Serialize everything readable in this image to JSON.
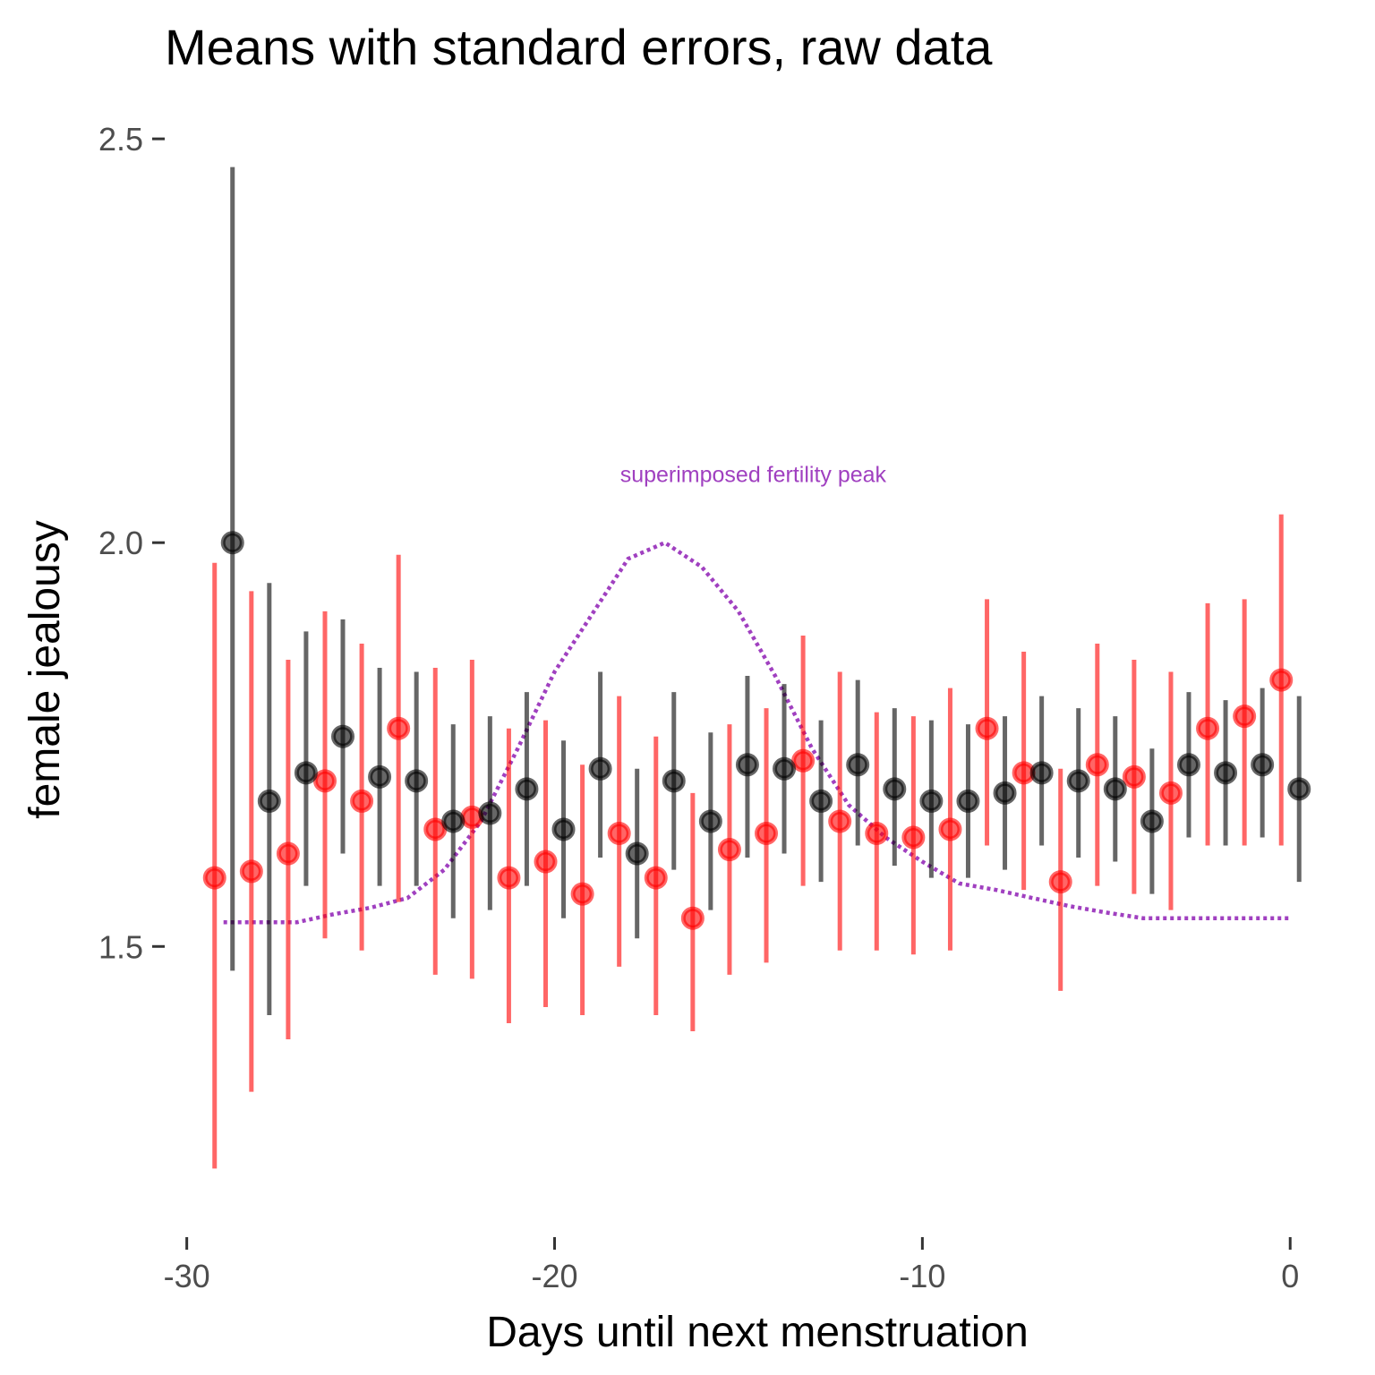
{
  "chart_data": {
    "type": "scatter",
    "title": "Means with standard errors, raw data",
    "xlabel": "Days until next menstruation",
    "ylabel": "female jealousy",
    "xlim": [
      -30.6,
      0.7
    ],
    "ylim": [
      1.17,
      2.55
    ],
    "xticks": [
      -30,
      -20,
      -10,
      0
    ],
    "xtick_labels": [
      "-30",
      "-20",
      "-10",
      "0"
    ],
    "yticks": [
      1.5,
      2.0,
      2.5
    ],
    "ytick_labels": [
      "1.5",
      "2.0",
      "2.5"
    ],
    "grid": false,
    "legend": "none",
    "annotation": {
      "text": "superimposed fertility peak",
      "x": -14.6,
      "y": 2.085,
      "color": "#a040c0"
    },
    "series": [
      {
        "color": "#ff0000",
        "points": [
          {
            "x": -29,
            "y": 1.585,
            "lo": 1.225,
            "hi": 1.975
          },
          {
            "x": -28,
            "y": 1.593,
            "lo": 1.32,
            "hi": 1.94
          },
          {
            "x": -27,
            "y": 1.615,
            "lo": 1.385,
            "hi": 1.855
          },
          {
            "x": -26,
            "y": 1.705,
            "lo": 1.51,
            "hi": 1.915
          },
          {
            "x": -25,
            "y": 1.68,
            "lo": 1.495,
            "hi": 1.875
          },
          {
            "x": -24,
            "y": 1.77,
            "lo": 1.555,
            "hi": 1.985
          },
          {
            "x": -23,
            "y": 1.645,
            "lo": 1.465,
            "hi": 1.845
          },
          {
            "x": -22,
            "y": 1.66,
            "lo": 1.46,
            "hi": 1.855
          },
          {
            "x": -21,
            "y": 1.585,
            "lo": 1.405,
            "hi": 1.77
          },
          {
            "x": -20,
            "y": 1.605,
            "lo": 1.425,
            "hi": 1.78
          },
          {
            "x": -19,
            "y": 1.565,
            "lo": 1.415,
            "hi": 1.725
          },
          {
            "x": -18,
            "y": 1.64,
            "lo": 1.475,
            "hi": 1.81
          },
          {
            "x": -17,
            "y": 1.585,
            "lo": 1.415,
            "hi": 1.76
          },
          {
            "x": -16,
            "y": 1.535,
            "lo": 1.395,
            "hi": 1.69
          },
          {
            "x": -15,
            "y": 1.62,
            "lo": 1.465,
            "hi": 1.775
          },
          {
            "x": -14,
            "y": 1.64,
            "lo": 1.48,
            "hi": 1.795
          },
          {
            "x": -13,
            "y": 1.73,
            "lo": 1.575,
            "hi": 1.885
          },
          {
            "x": -12,
            "y": 1.655,
            "lo": 1.495,
            "hi": 1.84
          },
          {
            "x": -11,
            "y": 1.64,
            "lo": 1.495,
            "hi": 1.79
          },
          {
            "x": -10,
            "y": 1.635,
            "lo": 1.49,
            "hi": 1.785
          },
          {
            "x": -9,
            "y": 1.645,
            "lo": 1.495,
            "hi": 1.82
          },
          {
            "x": -8,
            "y": 1.77,
            "lo": 1.625,
            "hi": 1.93
          },
          {
            "x": -7,
            "y": 1.715,
            "lo": 1.57,
            "hi": 1.865
          },
          {
            "x": -6,
            "y": 1.58,
            "lo": 1.445,
            "hi": 1.72
          },
          {
            "x": -5,
            "y": 1.725,
            "lo": 1.575,
            "hi": 1.875
          },
          {
            "x": -4,
            "y": 1.71,
            "lo": 1.565,
            "hi": 1.855
          },
          {
            "x": -3,
            "y": 1.69,
            "lo": 1.545,
            "hi": 1.84
          },
          {
            "x": -2,
            "y": 1.77,
            "lo": 1.625,
            "hi": 1.925
          },
          {
            "x": -1,
            "y": 1.785,
            "lo": 1.625,
            "hi": 1.93
          },
          {
            "x": 0,
            "y": 1.83,
            "lo": 1.625,
            "hi": 2.035
          }
        ]
      },
      {
        "color": "#000000",
        "points": [
          {
            "x": -29,
            "y": 2.0,
            "lo": 1.47,
            "hi": 2.465
          },
          {
            "x": -28,
            "y": 1.68,
            "lo": 1.415,
            "hi": 1.95
          },
          {
            "x": -27,
            "y": 1.715,
            "lo": 1.575,
            "hi": 1.89
          },
          {
            "x": -26,
            "y": 1.76,
            "lo": 1.615,
            "hi": 1.905
          },
          {
            "x": -25,
            "y": 1.71,
            "lo": 1.575,
            "hi": 1.845
          },
          {
            "x": -24,
            "y": 1.705,
            "lo": 1.575,
            "hi": 1.84
          },
          {
            "x": -23,
            "y": 1.655,
            "lo": 1.535,
            "hi": 1.775
          },
          {
            "x": -22,
            "y": 1.665,
            "lo": 1.545,
            "hi": 1.785
          },
          {
            "x": -21,
            "y": 1.695,
            "lo": 1.575,
            "hi": 1.815
          },
          {
            "x": -20,
            "y": 1.645,
            "lo": 1.535,
            "hi": 1.755
          },
          {
            "x": -19,
            "y": 1.72,
            "lo": 1.61,
            "hi": 1.84
          },
          {
            "x": -18,
            "y": 1.615,
            "lo": 1.51,
            "hi": 1.72
          },
          {
            "x": -17,
            "y": 1.705,
            "lo": 1.595,
            "hi": 1.815
          },
          {
            "x": -16,
            "y": 1.655,
            "lo": 1.545,
            "hi": 1.765
          },
          {
            "x": -15,
            "y": 1.725,
            "lo": 1.61,
            "hi": 1.835
          },
          {
            "x": -14,
            "y": 1.72,
            "lo": 1.615,
            "hi": 1.825
          },
          {
            "x": -13,
            "y": 1.68,
            "lo": 1.58,
            "hi": 1.78
          },
          {
            "x": -12,
            "y": 1.725,
            "lo": 1.625,
            "hi": 1.83
          },
          {
            "x": -11,
            "y": 1.695,
            "lo": 1.6,
            "hi": 1.795
          },
          {
            "x": -10,
            "y": 1.68,
            "lo": 1.585,
            "hi": 1.78
          },
          {
            "x": -9,
            "y": 1.68,
            "lo": 1.585,
            "hi": 1.775
          },
          {
            "x": -8,
            "y": 1.69,
            "lo": 1.595,
            "hi": 1.785
          },
          {
            "x": -7,
            "y": 1.715,
            "lo": 1.625,
            "hi": 1.81
          },
          {
            "x": -6,
            "y": 1.705,
            "lo": 1.61,
            "hi": 1.795
          },
          {
            "x": -5,
            "y": 1.695,
            "lo": 1.605,
            "hi": 1.785
          },
          {
            "x": -4,
            "y": 1.655,
            "lo": 1.565,
            "hi": 1.745
          },
          {
            "x": -3,
            "y": 1.725,
            "lo": 1.635,
            "hi": 1.815
          },
          {
            "x": -2,
            "y": 1.715,
            "lo": 1.625,
            "hi": 1.805
          },
          {
            "x": -1,
            "y": 1.725,
            "lo": 1.635,
            "hi": 1.82
          },
          {
            "x": 0,
            "y": 1.695,
            "lo": 1.58,
            "hi": 1.81
          }
        ]
      }
    ],
    "curve": {
      "color": "#a040c0",
      "style": "dotted",
      "points": [
        {
          "x": -29,
          "y": 1.53
        },
        {
          "x": -27,
          "y": 1.53
        },
        {
          "x": -26,
          "y": 1.54
        },
        {
          "x": -25,
          "y": 1.548
        },
        {
          "x": -24,
          "y": 1.56
        },
        {
          "x": -23,
          "y": 1.595
        },
        {
          "x": -22,
          "y": 1.655
        },
        {
          "x": -21,
          "y": 1.745
        },
        {
          "x": -20,
          "y": 1.84
        },
        {
          "x": -19,
          "y": 1.91
        },
        {
          "x": -18,
          "y": 1.98
        },
        {
          "x": -17,
          "y": 2.0
        },
        {
          "x": -16,
          "y": 1.97
        },
        {
          "x": -15,
          "y": 1.915
        },
        {
          "x": -14,
          "y": 1.835
        },
        {
          "x": -13,
          "y": 1.745
        },
        {
          "x": -12,
          "y": 1.675
        },
        {
          "x": -11,
          "y": 1.635
        },
        {
          "x": -10,
          "y": 1.605
        },
        {
          "x": -9,
          "y": 1.578
        },
        {
          "x": -8,
          "y": 1.57
        },
        {
          "x": -7,
          "y": 1.56
        },
        {
          "x": -6,
          "y": 1.55
        },
        {
          "x": -5,
          "y": 1.542
        },
        {
          "x": -4,
          "y": 1.535
        },
        {
          "x": -3,
          "y": 1.535
        },
        {
          "x": 0,
          "y": 1.535
        }
      ]
    }
  }
}
